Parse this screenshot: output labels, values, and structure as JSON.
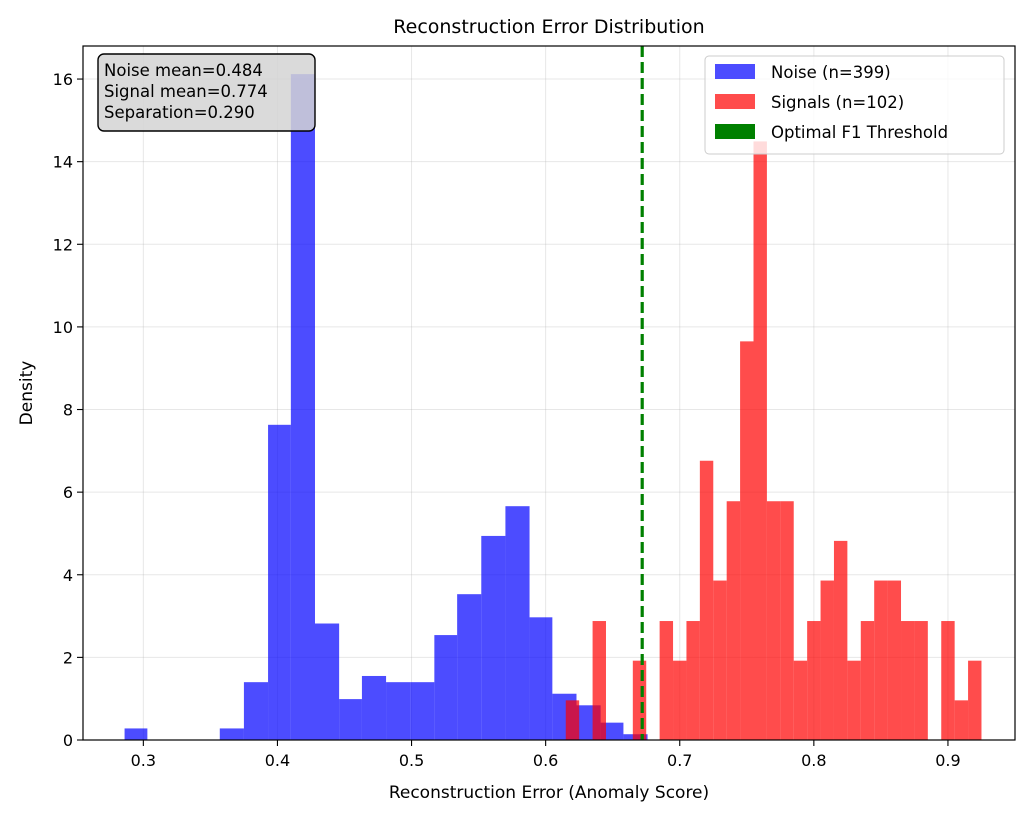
{
  "chart_data": {
    "type": "bar",
    "title": "Reconstruction Error Distribution",
    "xlabel": "Reconstruction Error (Anomaly Score)",
    "ylabel": "Density",
    "xlim": [
      0.255,
      0.95
    ],
    "ylim": [
      0,
      16.8
    ],
    "xticks": [
      "0.3",
      "0.4",
      "0.5",
      "0.6",
      "0.7",
      "0.8",
      "0.9"
    ],
    "yticks": [
      "0",
      "2",
      "4",
      "6",
      "8",
      "10",
      "12",
      "14",
      "16"
    ],
    "grid": true,
    "legend_position": "top-right",
    "series": [
      {
        "name": "Noise (n=399)",
        "color": "#0000ff",
        "opacity": 0.7,
        "bins": [
          {
            "x0": 0.286,
            "x1": 0.303,
            "y": 0.28
          },
          {
            "x0": 0.357,
            "x1": 0.375,
            "y": 0.28
          },
          {
            "x0": 0.375,
            "x1": 0.393,
            "y": 1.4
          },
          {
            "x0": 0.393,
            "x1": 0.41,
            "y": 7.63
          },
          {
            "x0": 0.41,
            "x1": 0.428,
            "y": 16.12
          },
          {
            "x0": 0.428,
            "x1": 0.446,
            "y": 2.82
          },
          {
            "x0": 0.446,
            "x1": 0.463,
            "y": 0.99
          },
          {
            "x0": 0.463,
            "x1": 0.481,
            "y": 1.55
          },
          {
            "x0": 0.481,
            "x1": 0.499,
            "y": 1.4
          },
          {
            "x0": 0.499,
            "x1": 0.517,
            "y": 1.4
          },
          {
            "x0": 0.517,
            "x1": 0.534,
            "y": 2.54
          },
          {
            "x0": 0.534,
            "x1": 0.552,
            "y": 3.53
          },
          {
            "x0": 0.552,
            "x1": 0.57,
            "y": 4.94
          },
          {
            "x0": 0.57,
            "x1": 0.588,
            "y": 5.66
          },
          {
            "x0": 0.588,
            "x1": 0.605,
            "y": 2.97
          },
          {
            "x0": 0.605,
            "x1": 0.623,
            "y": 1.12
          },
          {
            "x0": 0.623,
            "x1": 0.641,
            "y": 0.84
          },
          {
            "x0": 0.641,
            "x1": 0.658,
            "y": 0.42
          },
          {
            "x0": 0.658,
            "x1": 0.676,
            "y": 0.14
          }
        ]
      },
      {
        "name": "Signals (n=102)",
        "color": "#ff0000",
        "opacity": 0.7,
        "bins": [
          {
            "x0": 0.615,
            "x1": 0.625,
            "y": 0.96
          },
          {
            "x0": 0.635,
            "x1": 0.645,
            "y": 2.88
          },
          {
            "x0": 0.665,
            "x1": 0.675,
            "y": 1.92
          },
          {
            "x0": 0.685,
            "x1": 0.695,
            "y": 2.88
          },
          {
            "x0": 0.695,
            "x1": 0.705,
            "y": 1.92
          },
          {
            "x0": 0.705,
            "x1": 0.715,
            "y": 2.88
          },
          {
            "x0": 0.715,
            "x1": 0.725,
            "y": 6.76
          },
          {
            "x0": 0.725,
            "x1": 0.735,
            "y": 3.86
          },
          {
            "x0": 0.735,
            "x1": 0.745,
            "y": 5.78
          },
          {
            "x0": 0.745,
            "x1": 0.755,
            "y": 9.65
          },
          {
            "x0": 0.755,
            "x1": 0.765,
            "y": 14.49
          },
          {
            "x0": 0.765,
            "x1": 0.775,
            "y": 5.78
          },
          {
            "x0": 0.775,
            "x1": 0.785,
            "y": 5.78
          },
          {
            "x0": 0.785,
            "x1": 0.795,
            "y": 1.92
          },
          {
            "x0": 0.795,
            "x1": 0.805,
            "y": 2.88
          },
          {
            "x0": 0.805,
            "x1": 0.815,
            "y": 3.86
          },
          {
            "x0": 0.815,
            "x1": 0.825,
            "y": 4.82
          },
          {
            "x0": 0.825,
            "x1": 0.835,
            "y": 1.92
          },
          {
            "x0": 0.835,
            "x1": 0.845,
            "y": 2.88
          },
          {
            "x0": 0.845,
            "x1": 0.855,
            "y": 3.86
          },
          {
            "x0": 0.855,
            "x1": 0.865,
            "y": 3.86
          },
          {
            "x0": 0.865,
            "x1": 0.875,
            "y": 2.88
          },
          {
            "x0": 0.875,
            "x1": 0.885,
            "y": 2.88
          },
          {
            "x0": 0.895,
            "x1": 0.905,
            "y": 2.88
          },
          {
            "x0": 0.905,
            "x1": 0.915,
            "y": 0.96
          },
          {
            "x0": 0.915,
            "x1": 0.925,
            "y": 1.92
          }
        ]
      }
    ],
    "threshold": {
      "name": "Optimal F1 Threshold",
      "x": 0.672,
      "color": "#008000",
      "style": "dashed"
    },
    "stats_box": {
      "lines": [
        "Noise mean=0.484",
        "Signal mean=0.774",
        "Separation=0.290"
      ]
    }
  }
}
